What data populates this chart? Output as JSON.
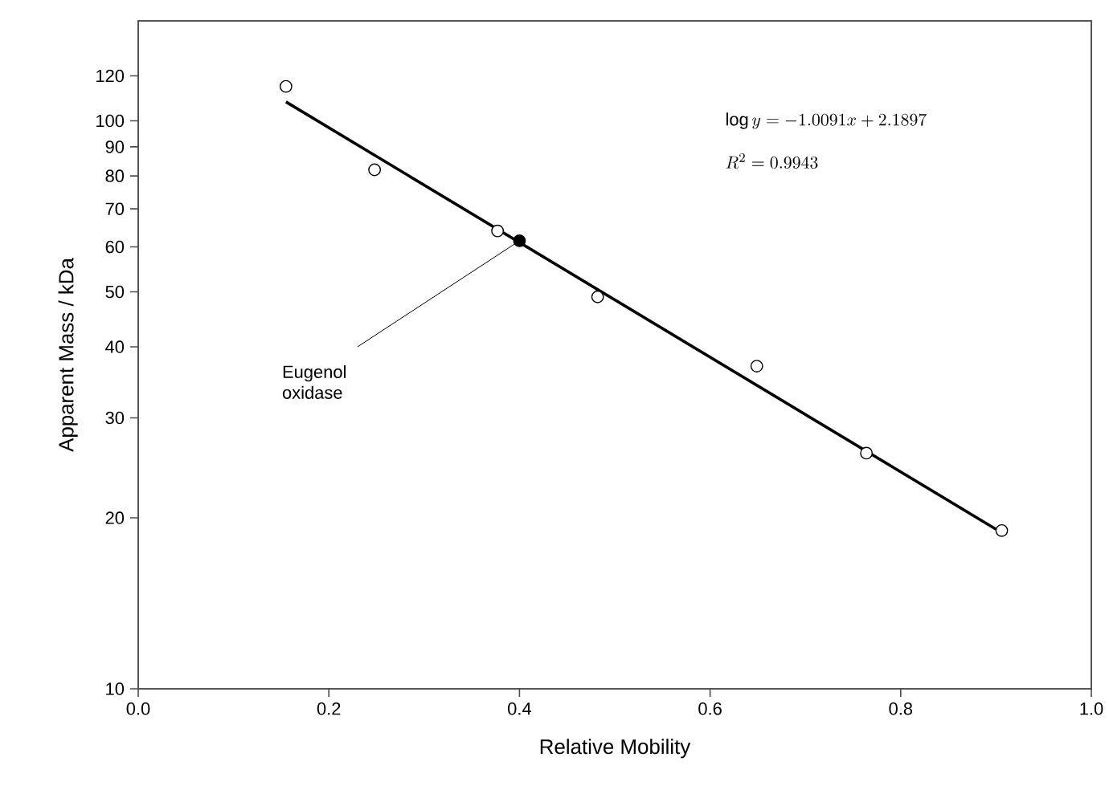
{
  "chart_data": {
    "type": "scatter",
    "xlabel": "Relative Mobility",
    "ylabel": "Apparent Mass / kDa",
    "log": "y",
    "xlim": [
      0,
      1
    ],
    "ylim": [
      10,
      150
    ],
    "xticks": [
      {
        "value": 0,
        "label": "0.0"
      },
      {
        "value": 0.2,
        "label": "0.2"
      },
      {
        "value": 0.4,
        "label": "0.4"
      },
      {
        "value": 0.6,
        "label": "0.6"
      },
      {
        "value": 0.8,
        "label": "0.8"
      },
      {
        "value": 1,
        "label": "1.0"
      }
    ],
    "yticks": [
      10,
      20,
      30,
      40,
      50,
      60,
      70,
      80,
      90,
      100,
      120
    ],
    "series": [
      {
        "color": "#000000",
        "marker": "circle",
        "x": [
          0.155,
          0.248,
          0.377,
          0.482,
          0.649,
          0.764,
          0.906
        ],
        "values": [
          115,
          82,
          64,
          49,
          37,
          26,
          19
        ]
      },
      {
        "color": "#000000",
        "marker": "circle",
        "x": [
          0.4
        ],
        "values": [
          61.5
        ]
      },
      {
        "type": "line",
        "color": "#000000",
        "marker": "none",
        "x": [
          0.155,
          0.9
        ],
        "values": [
          108,
          19.1
        ]
      }
    ],
    "annotations": [
      {
        "text": "Eugenol oxidase",
        "x": 0.4,
        "y": 61.5
      },
      "\\log y = -1.0091x + 2.1897",
      "R^{2} = 0.9943"
    ]
  }
}
